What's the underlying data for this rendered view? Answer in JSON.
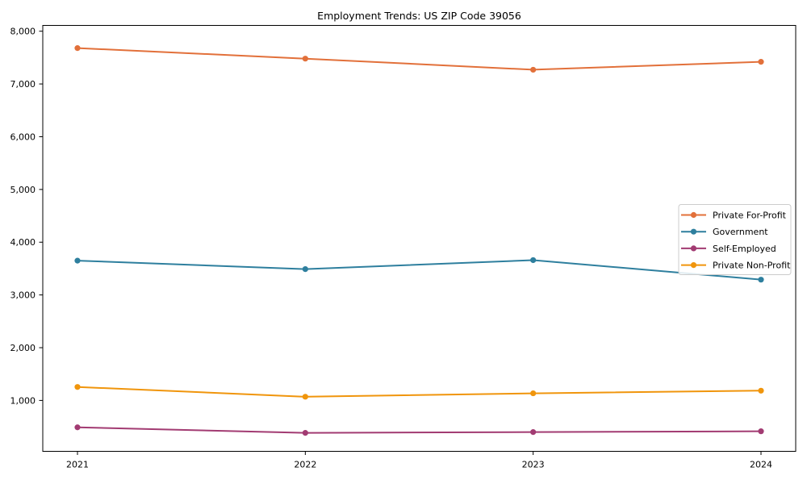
{
  "figure": {
    "background": "#ffffff",
    "frame_color": "#000000",
    "tick_label_color": "#000000"
  },
  "chart_data": {
    "type": "line",
    "title": "Employment Trends: US ZIP Code 39056",
    "x": [
      "2021",
      "2022",
      "2023",
      "2024"
    ],
    "series": [
      {
        "name": "Private For-Profit",
        "color": "#e2703a",
        "values": [
          7680,
          7480,
          7270,
          7420
        ]
      },
      {
        "name": "Government",
        "color": "#2e7f9e",
        "values": [
          3650,
          3490,
          3660,
          3290
        ]
      },
      {
        "name": "Self-Employed",
        "color": "#a23b72",
        "values": [
          490,
          385,
          400,
          415
        ]
      },
      {
        "name": "Private Non-Profit",
        "color": "#f0950c",
        "values": [
          1255,
          1070,
          1135,
          1185
        ]
      }
    ],
    "yticks": [
      1000,
      2000,
      3000,
      4000,
      5000,
      6000,
      7000,
      8000
    ],
    "ytick_labels": [
      "1,000",
      "2,000",
      "3,000",
      "4,000",
      "5,000",
      "6,000",
      "7,000",
      "8,000"
    ],
    "ylim": [
      35,
      8110
    ],
    "grid": false,
    "marker": "o",
    "legend_position": "center right",
    "legend_border_color": "#cccccc",
    "legend_background": "#ffffff"
  }
}
